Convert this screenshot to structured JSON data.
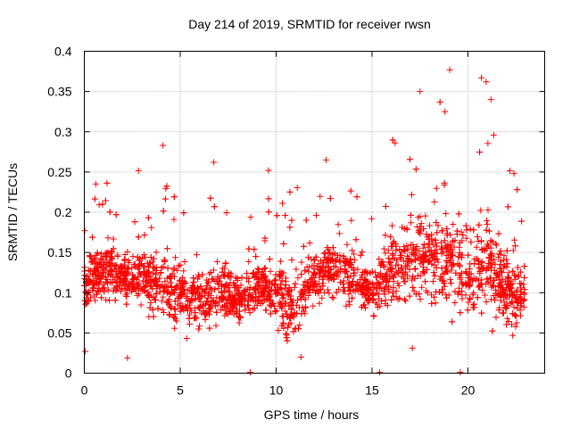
{
  "chart_data": {
    "type": "scatter",
    "title": "Day 214 of 2019, SRMTID for receiver rwsn",
    "xlabel": "GPS time / hours",
    "ylabel": "SRMTID / TECUs",
    "xlim": [
      0,
      24
    ],
    "ylim": [
      0,
      0.4
    ],
    "grid": true,
    "marker": "plus",
    "marker_color": "#ff0000",
    "x_ticks": [
      0,
      5,
      10,
      15,
      20
    ],
    "x_tick_labels": [
      "0",
      "5",
      "10",
      "15",
      "20"
    ],
    "y_ticks": [
      0,
      0.05,
      0.1,
      0.15,
      0.2,
      0.25,
      0.3,
      0.35,
      0.4
    ],
    "y_tick_labels": [
      "0",
      "0.05",
      "0.1",
      "0.15",
      "0.2",
      "0.25",
      "0.3",
      "0.35",
      "0.4"
    ],
    "envelope": {
      "hours": [
        0,
        1,
        2,
        3,
        4,
        5,
        6,
        7,
        8,
        9,
        10,
        11,
        12,
        13,
        14,
        15,
        16,
        17,
        18,
        19,
        20,
        21,
        22,
        23
      ],
      "typical": [
        0.11,
        0.13,
        0.12,
        0.12,
        0.11,
        0.1,
        0.09,
        0.1,
        0.09,
        0.11,
        0.1,
        0.08,
        0.12,
        0.13,
        0.12,
        0.1,
        0.13,
        0.14,
        0.15,
        0.14,
        0.12,
        0.14,
        0.1,
        0.1
      ],
      "upper": [
        0.2,
        0.26,
        0.2,
        0.28,
        0.26,
        0.25,
        0.2,
        0.26,
        0.2,
        0.2,
        0.25,
        0.24,
        0.25,
        0.26,
        0.24,
        0.2,
        0.29,
        0.3,
        0.35,
        0.38,
        0.3,
        0.37,
        0.26,
        0.25
      ]
    },
    "sample_points": [
      {
        "x": 0.05,
        "y": 0.027
      },
      {
        "x": 0.6,
        "y": 0.235
      },
      {
        "x": 2.25,
        "y": 0.019
      },
      {
        "x": 4.1,
        "y": 0.283
      },
      {
        "x": 4.7,
        "y": 0.12
      },
      {
        "x": 6.75,
        "y": 0.262
      },
      {
        "x": 8.65,
        "y": 0.001
      },
      {
        "x": 9.6,
        "y": 0.252
      },
      {
        "x": 11.3,
        "y": 0.02
      },
      {
        "x": 12.6,
        "y": 0.265
      },
      {
        "x": 15.4,
        "y": 0.001
      },
      {
        "x": 16.2,
        "y": 0.286
      },
      {
        "x": 17.1,
        "y": 0.031
      },
      {
        "x": 17.5,
        "y": 0.35
      },
      {
        "x": 18.8,
        "y": 0.325
      },
      {
        "x": 19.05,
        "y": 0.377
      },
      {
        "x": 19.6,
        "y": 0.001
      },
      {
        "x": 20.7,
        "y": 0.367
      },
      {
        "x": 20.95,
        "y": 0.362
      },
      {
        "x": 21.2,
        "y": 0.34
      },
      {
        "x": 22.4,
        "y": 0.248
      },
      {
        "x": 22.9,
        "y": 0.09
      }
    ],
    "generated_count": 3200
  }
}
